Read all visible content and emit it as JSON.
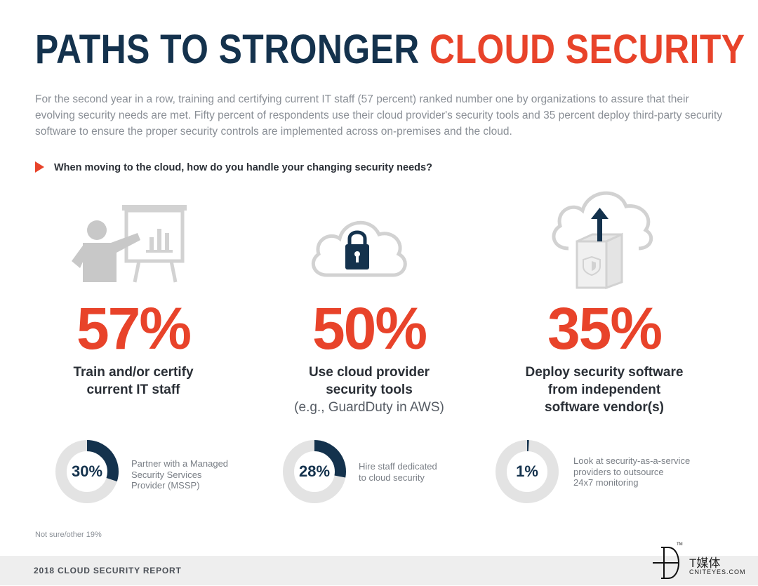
{
  "title": {
    "part1": "PATHS TO STRONGER ",
    "part2": "CLOUD SECURITY"
  },
  "intro": "For the second year in a row, training and certifying current IT staff (57 percent) ranked number one by organizations to assure that their evolving security needs are met. Fifty percent of respondents use their cloud provider's security tools and 35 percent deploy third-party security software to ensure the proper security controls are implemented across on-premises and the cloud.",
  "question": "When moving to the cloud, how do you handle your changing security needs?",
  "stats": [
    {
      "percent": "57%",
      "line1": "Train and/or certify",
      "line2": "current IT staff",
      "icon": "presentation-icon"
    },
    {
      "percent": "50%",
      "line1": "Use cloud provider",
      "line2": "security tools",
      "line3": "(e.g., GuardDuty in AWS)",
      "icon": "cloud-lock-icon"
    },
    {
      "percent": "35%",
      "line1": "Deploy security software",
      "line2": "from independent",
      "line3": "software vendor(s)",
      "icon": "cloud-upload-icon"
    }
  ],
  "donuts": [
    {
      "label": "30%",
      "value": 0.3,
      "line1": "Partner with a Managed",
      "line2": "Security Services",
      "line3": "Provider (MSSP)"
    },
    {
      "label": "28%",
      "value": 0.28,
      "line1": "Hire staff dedicated",
      "line2": "to cloud security"
    },
    {
      "label": "1%",
      "value": 0.01,
      "line1": "Look at security-as-a-service",
      "line2": "providers to outsource",
      "line3": "24x7 monitoring"
    }
  ],
  "note": "Not sure/other 19%",
  "footer": "2018 CLOUD SECURITY REPORT",
  "watermark": {
    "cn": "T媒体",
    "en": "CNITEYES.COM",
    "tm": "TM"
  },
  "colors": {
    "navy": "#14324d",
    "red": "#e8432a",
    "ring": "#e3e3e3",
    "icon_gray": "#c8c8c8"
  }
}
